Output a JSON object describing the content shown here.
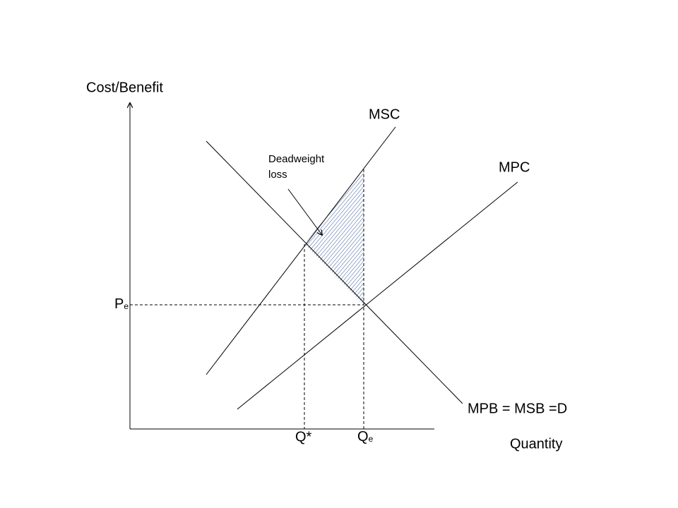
{
  "diagram": {
    "axes": {
      "y_label": "Cost/Benefit",
      "x_label": "Quantity"
    },
    "curves": {
      "msc": "MSC",
      "mpc": "MPC",
      "demand": "MPB = MSB =D"
    },
    "annotation": {
      "lines": [
        "Deadweight",
        "loss"
      ]
    },
    "points": {
      "price": {
        "text": "P",
        "sub": "e"
      },
      "q_star": {
        "text": "Q*"
      },
      "q_e": {
        "text": "Q",
        "sub": "e"
      }
    }
  }
}
